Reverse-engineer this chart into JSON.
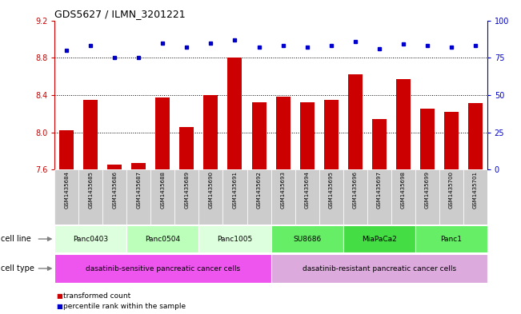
{
  "title": "GDS5627 / ILMN_3201221",
  "samples": [
    "GSM1435684",
    "GSM1435685",
    "GSM1435686",
    "GSM1435687",
    "GSM1435688",
    "GSM1435689",
    "GSM1435690",
    "GSM1435691",
    "GSM1435692",
    "GSM1435693",
    "GSM1435694",
    "GSM1435695",
    "GSM1435696",
    "GSM1435697",
    "GSM1435698",
    "GSM1435699",
    "GSM1435700",
    "GSM1435701"
  ],
  "transformed_count": [
    8.02,
    8.35,
    7.65,
    7.67,
    8.37,
    8.06,
    8.4,
    8.8,
    8.32,
    8.38,
    8.32,
    8.35,
    8.62,
    8.14,
    8.57,
    8.25,
    8.22,
    8.31
  ],
  "percentile_rank": [
    80,
    83,
    75,
    75,
    85,
    82,
    85,
    87,
    82,
    83,
    82,
    83,
    86,
    81,
    84,
    83,
    82,
    83
  ],
  "ylim_left": [
    7.6,
    9.2
  ],
  "ylim_right": [
    0,
    100
  ],
  "yticks_left": [
    7.6,
    8.0,
    8.4,
    8.8,
    9.2
  ],
  "yticks_right": [
    0,
    25,
    50,
    75,
    100
  ],
  "grid_values": [
    8.0,
    8.4,
    8.8
  ],
  "cell_lines": [
    {
      "label": "Panc0403",
      "start": 0,
      "end": 3,
      "color": "#ddffdd"
    },
    {
      "label": "Panc0504",
      "start": 3,
      "end": 6,
      "color": "#bbffbb"
    },
    {
      "label": "Panc1005",
      "start": 6,
      "end": 9,
      "color": "#ddffdd"
    },
    {
      "label": "SU8686",
      "start": 9,
      "end": 12,
      "color": "#66ee66"
    },
    {
      "label": "MiaPaCa2",
      "start": 12,
      "end": 15,
      "color": "#44dd44"
    },
    {
      "label": "Panc1",
      "start": 15,
      "end": 18,
      "color": "#66ee66"
    }
  ],
  "cell_types": [
    {
      "label": "dasatinib-sensitive pancreatic cancer cells",
      "start": 0,
      "end": 9,
      "color": "#ee55ee"
    },
    {
      "label": "dasatinib-resistant pancreatic cancer cells",
      "start": 9,
      "end": 18,
      "color": "#ddaadd"
    }
  ],
  "bar_color": "#cc0000",
  "dot_color": "#0000cc",
  "left_axis_color": "#cc0000",
  "right_axis_color": "#0000cc",
  "sample_bg_color": "#cccccc",
  "legend_items": [
    {
      "label": "transformed count",
      "color": "#cc0000"
    },
    {
      "label": "percentile rank within the sample",
      "color": "#0000cc"
    }
  ]
}
